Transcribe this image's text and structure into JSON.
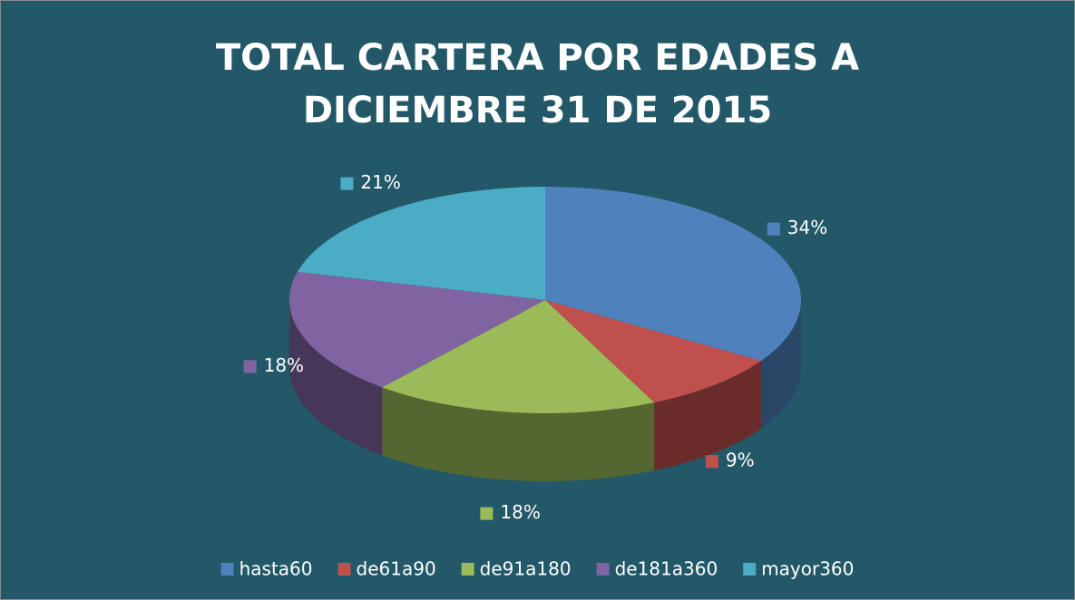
{
  "chart_data": {
    "type": "pie3d",
    "title": "TOTAL CARTERA POR EDADES A DICIEMBRE 31 DE 2015",
    "categories": [
      "hasta60",
      "de61a90",
      "de91a180",
      "de181a360",
      "mayor360"
    ],
    "values": [
      34,
      9,
      18,
      18,
      21
    ],
    "value_labels": [
      "34%",
      "9%",
      "18%",
      "18%",
      "21%"
    ],
    "colors": [
      "#4f81bd",
      "#c0504d",
      "#9bbb59",
      "#8064a2",
      "#4bacc6"
    ],
    "legend": "bottom"
  }
}
